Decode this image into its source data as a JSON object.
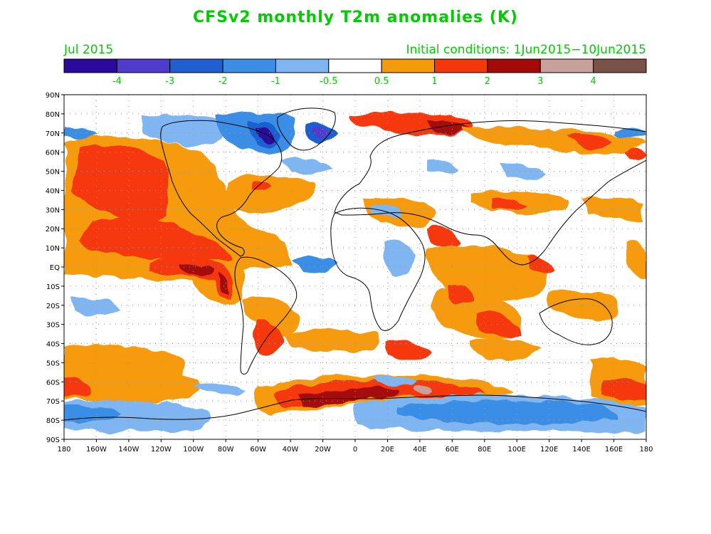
{
  "title": "CFSv2 monthly T2m anomalies (K)",
  "valid_month": "Jul 2015",
  "initial_conditions": "Initial conditions: 1Jun2015−10Jun2015",
  "colorbar": {
    "bins": [
      {
        "color": "#2a0a9c"
      },
      {
        "color": "#4f3ccf"
      },
      {
        "color": "#1f5fcf"
      },
      {
        "color": "#3b8ee6"
      },
      {
        "color": "#7fb6f2"
      },
      {
        "color": "#ffffff"
      },
      {
        "color": "#f59b0b"
      },
      {
        "color": "#f5380a"
      },
      {
        "color": "#a30a0a"
      },
      {
        "color": "#c8a19a"
      },
      {
        "color": "#7a5247"
      }
    ],
    "labels": [
      "-4",
      "-3",
      "-2",
      "-1",
      "-0.5",
      "0.5",
      "1",
      "2",
      "3",
      "4"
    ],
    "label_color": "#00cc00"
  },
  "axes": {
    "lat_labels": [
      "90N",
      "80N",
      "70N",
      "60N",
      "50N",
      "40N",
      "30N",
      "20N",
      "10N",
      "EQ",
      "10S",
      "20S",
      "30S",
      "40S",
      "50S",
      "60S",
      "70S",
      "80S",
      "90S"
    ],
    "lon_labels": [
      "180",
      "160W",
      "140W",
      "120W",
      "100W",
      "80W",
      "60W",
      "40W",
      "20W",
      "0",
      "20E",
      "40E",
      "60E",
      "80E",
      "100E",
      "120E",
      "140E",
      "160E",
      "180"
    ]
  }
}
